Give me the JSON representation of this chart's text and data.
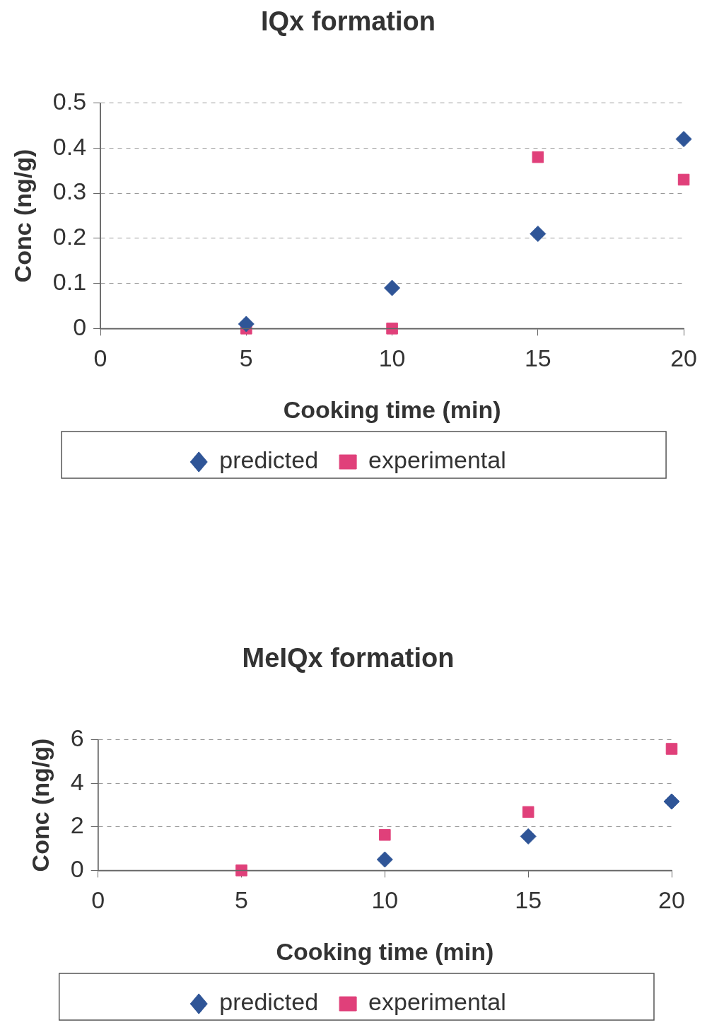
{
  "chart_data": [
    {
      "type": "scatter",
      "title": "IQx formation",
      "xlabel": "Cooking time (min)",
      "ylabel": "Conc (ng/g)",
      "x": [
        5,
        10,
        15,
        20
      ],
      "series": [
        {
          "name": "predicted",
          "color": "#2f5597",
          "marker": "diamond",
          "values": [
            0.01,
            0.09,
            0.21,
            0.42
          ]
        },
        {
          "name": "experimental",
          "color": "#e0407a",
          "marker": "square",
          "values": [
            0,
            0,
            0.38,
            0.33
          ]
        }
      ],
      "xlim": [
        0,
        20
      ],
      "xticks": [
        0,
        5,
        10,
        15,
        20
      ],
      "ylim": [
        0,
        0.5
      ],
      "yticks": [
        0,
        0.1,
        0.2,
        0.3,
        0.4,
        0.5
      ],
      "grid": "y",
      "line_style": "dashed",
      "legend": "bottom"
    },
    {
      "type": "scatter",
      "title": "MeIQx formation",
      "xlabel": "Cooking time (min)",
      "ylabel": "Conc (ng/g)",
      "x": [
        5,
        10,
        15,
        20
      ],
      "series": [
        {
          "name": "predicted",
          "color": "#2f5597",
          "marker": "diamond",
          "values": [
            null,
            0.5,
            1.56,
            3.16
          ]
        },
        {
          "name": "experimental",
          "color": "#e0407a",
          "marker": "square",
          "values": [
            0,
            1.63,
            2.68,
            5.58
          ]
        }
      ],
      "xlim": [
        0,
        20
      ],
      "xticks": [
        0,
        5,
        10,
        15,
        20
      ],
      "ylim": [
        0,
        6
      ],
      "yticks": [
        0,
        2,
        4,
        6
      ],
      "grid": "y",
      "line_style": "dashed",
      "legend": "bottom"
    }
  ]
}
